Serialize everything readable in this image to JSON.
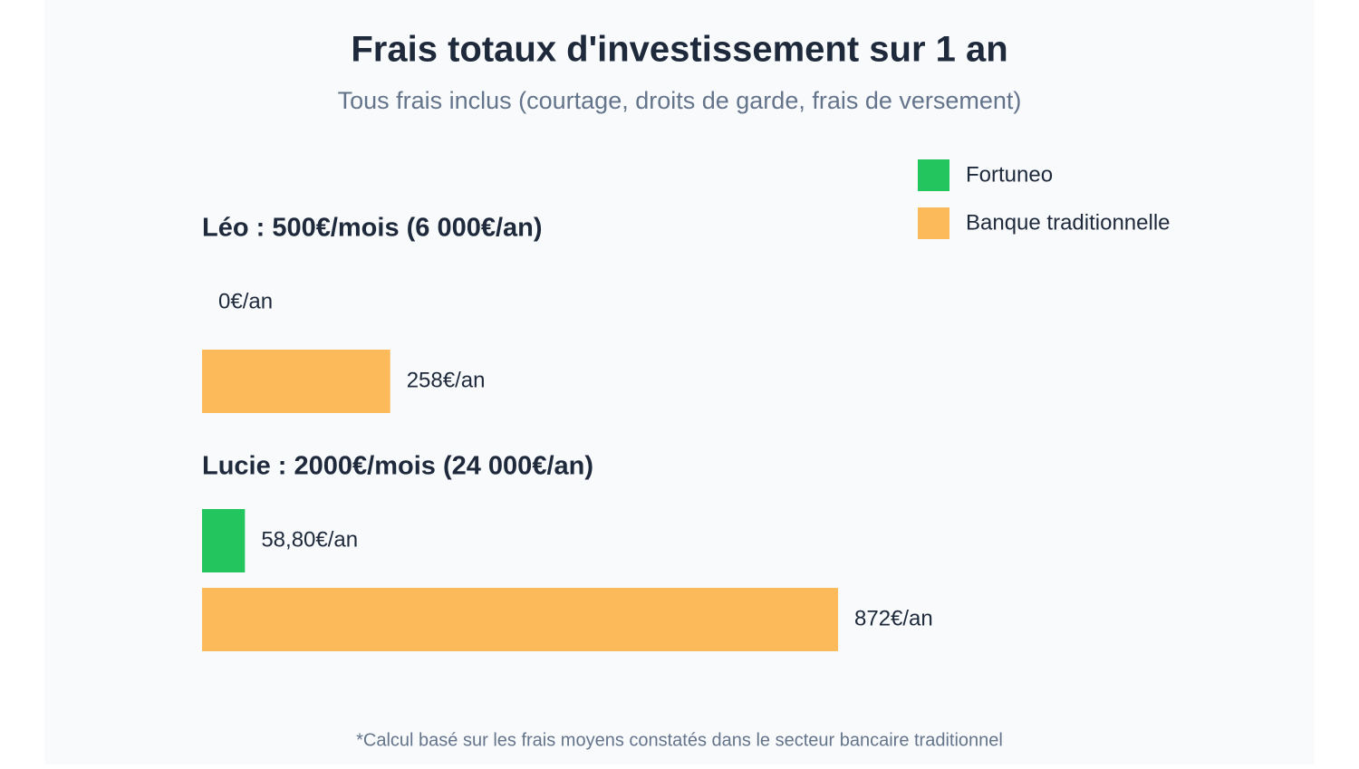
{
  "chart_data": {
    "type": "bar",
    "orientation": "horizontal",
    "title": "Frais totaux d'investissement sur 1 an",
    "subtitle": "Tous frais inclus (courtage, droits de garde, frais de versement)",
    "categories": [
      "Léo : 500€/mois (6 000€/an)",
      "Lucie : 2000€/mois (24 000€/an)"
    ],
    "series": [
      {
        "name": "Fortuneo",
        "color": "#22c55e",
        "values": [
          0,
          58.8
        ],
        "value_labels": [
          "0€/an",
          "58,80€/an"
        ]
      },
      {
        "name": "Banque traditionnelle",
        "color": "#fdba5a",
        "values": [
          258,
          872
        ],
        "value_labels": [
          "258€/an",
          "872€/an"
        ]
      }
    ],
    "legend": "top-right",
    "footnote": "*Calcul basé sur les frais moyens constatés dans le secteur bancaire traditionnel"
  }
}
